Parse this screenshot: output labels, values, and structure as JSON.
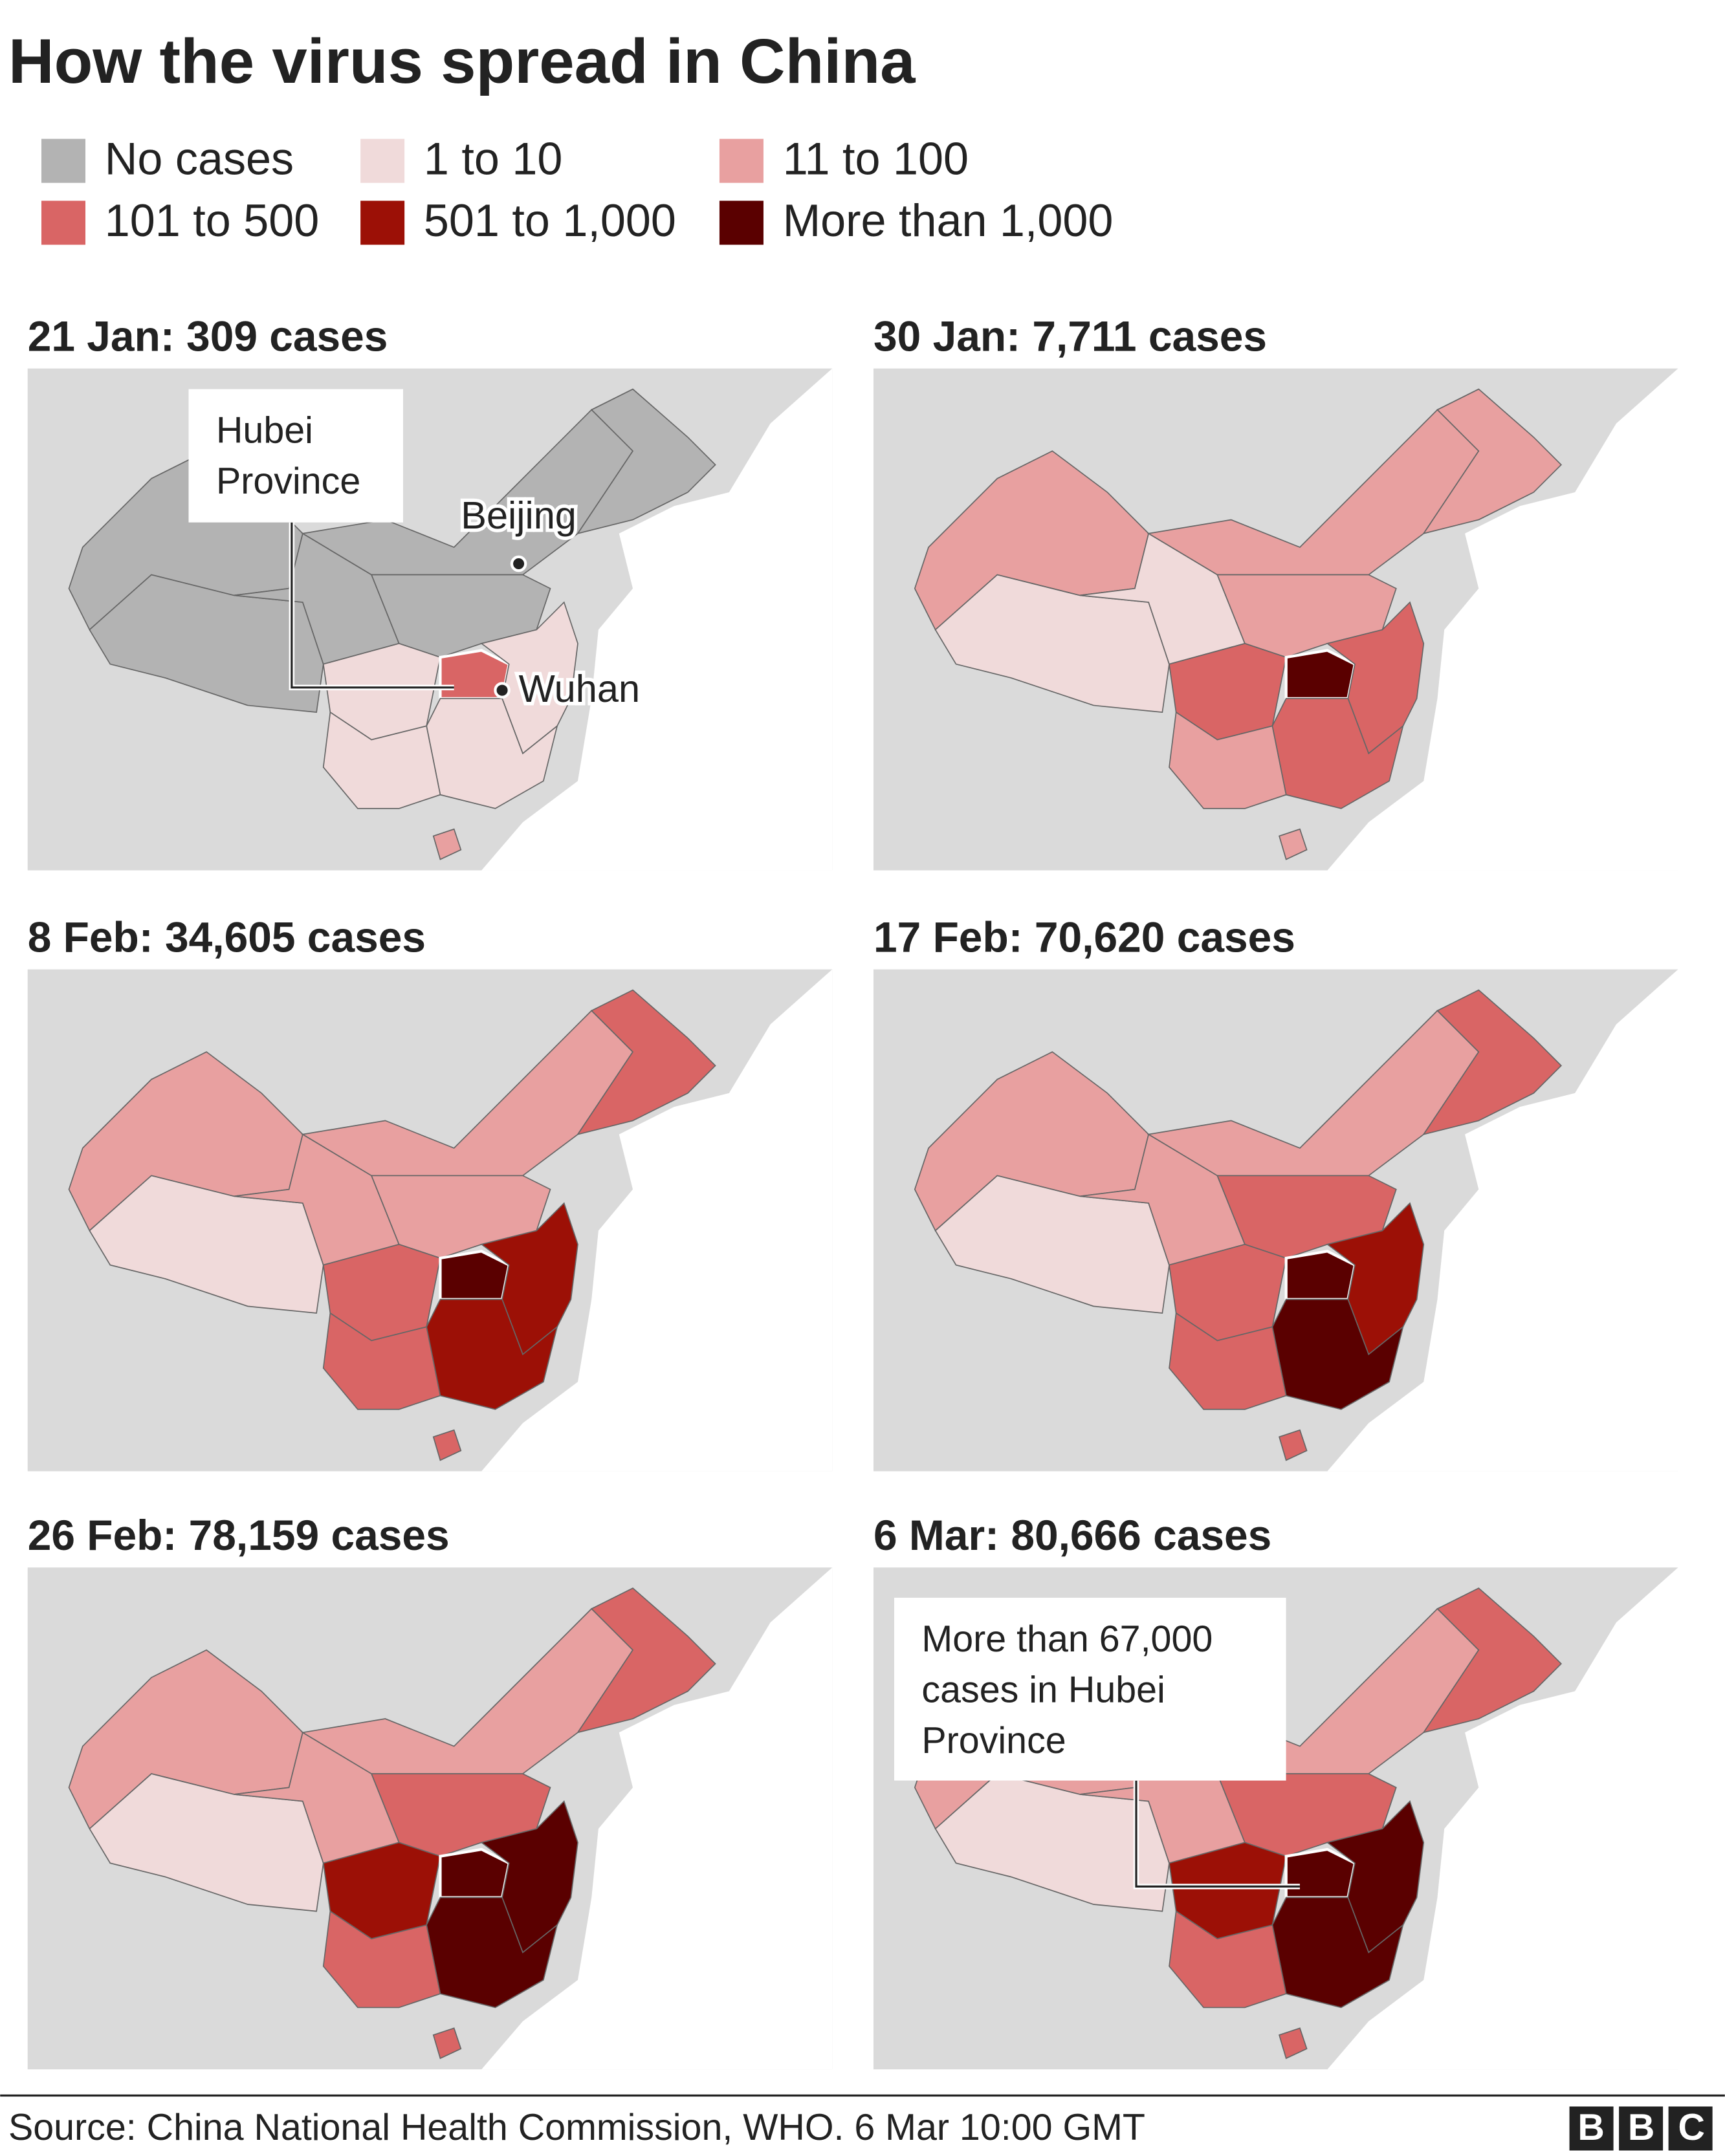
{
  "title": "How the virus spread in China",
  "legend": [
    {
      "label": "No cases",
      "color": "#b3b3b3"
    },
    {
      "label": "1 to 10",
      "color": "#f0dada"
    },
    {
      "label": "11 to 100",
      "color": "#e8a0a0"
    },
    {
      "label": "101 to 500",
      "color": "#d96565"
    },
    {
      "label": "501 to 1,000",
      "color": "#9c1006"
    },
    {
      "label": "More than 1,000",
      "color": "#5a0000"
    }
  ],
  "panels": [
    {
      "title": "21 Jan: 309 cases"
    },
    {
      "title": "30 Jan: 7,711 cases"
    },
    {
      "title": "8 Feb: 34,605 cases"
    },
    {
      "title": "17 Feb: 70,620 cases"
    },
    {
      "title": "26 Feb: 78,159 cases"
    },
    {
      "title": "6 Mar: 80,666 cases"
    }
  ],
  "annotations": {
    "hubei": "Hubei Province",
    "beijing": "Beijing",
    "wuhan": "Wuhan",
    "hubei_cases": "More than 67,000 cases in Hubei Province"
  },
  "source": "Source: China National Health Commission, WHO. 6 Mar 10:00 GMT",
  "logo": "BBC"
}
